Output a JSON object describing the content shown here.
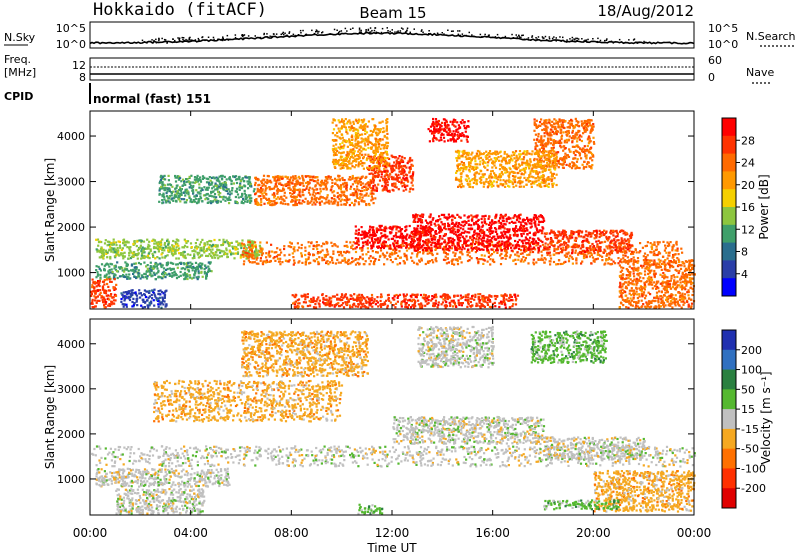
{
  "header": {
    "station": "Hokkaido (fitACF)",
    "beam": "Beam 15",
    "date": "18/Aug/2012"
  },
  "nsky_panel": {
    "label": "N.Sky",
    "left_ticks": [
      "10^5",
      "10^0"
    ],
    "right_ticks": [
      "10^5",
      "10^0"
    ],
    "right_label": "N.Search"
  },
  "freq_panel": {
    "label_line1": "Freq.",
    "label_line2": "[MHz]",
    "left_ticks": [
      "12",
      "8"
    ],
    "right_ticks": [
      "60",
      "0"
    ],
    "right_label": "Nave"
  },
  "cpid": {
    "label": "CPID",
    "value": "normal (fast) 151"
  },
  "chart_data": [
    {
      "type": "heatmap",
      "panel": "power",
      "ylabel": "Slant Range [km]",
      "ylim": [
        200,
        4550
      ],
      "yticks": [
        1000,
        2000,
        3000,
        4000
      ],
      "xlim_hours": [
        0,
        24
      ],
      "colorbar_label": "Power [dB]",
      "colorbar_ticks": [
        "28",
        "24",
        "20",
        "16",
        "12",
        "8",
        "4"
      ],
      "colors": [
        "#ff0000",
        "#ff3300",
        "#ff6a00",
        "#ff9900",
        "#f5d000",
        "#8dc63f",
        "#3f9f6a",
        "#2a6e8e",
        "#2a3ea8",
        "#0000ff"
      ],
      "bands": [
        {
          "t0": 0.2,
          "t1": 6.8,
          "r0": 1330,
          "r1": 1750,
          "c": 5
        },
        {
          "t0": 0.2,
          "t1": 4.8,
          "r0": 880,
          "r1": 1250,
          "c": 6
        },
        {
          "t0": 0.0,
          "t1": 1.0,
          "r0": 250,
          "r1": 880,
          "c": 1
        },
        {
          "t0": 1.2,
          "t1": 3.0,
          "r0": 250,
          "r1": 650,
          "c": 8
        },
        {
          "t0": 2.7,
          "t1": 6.5,
          "r0": 2550,
          "r1": 3150,
          "c": 6
        },
        {
          "t0": 6.5,
          "t1": 11.3,
          "r0": 2500,
          "r1": 3150,
          "c": 2
        },
        {
          "t0": 6.0,
          "t1": 23.5,
          "r0": 1200,
          "r1": 1700,
          "c": 2
        },
        {
          "t0": 10.5,
          "t1": 13.5,
          "r0": 1550,
          "r1": 2050,
          "c": 0
        },
        {
          "t0": 12.8,
          "t1": 18.0,
          "r0": 1500,
          "r1": 2300,
          "c": 0
        },
        {
          "t0": 18.0,
          "t1": 21.5,
          "r0": 1450,
          "r1": 1950,
          "c": 1
        },
        {
          "t0": 11.0,
          "t1": 12.8,
          "r0": 2800,
          "r1": 3600,
          "c": 1
        },
        {
          "t0": 13.4,
          "t1": 15.0,
          "r0": 3900,
          "r1": 4400,
          "c": 0
        },
        {
          "t0": 17.6,
          "t1": 20.0,
          "r0": 3300,
          "r1": 4400,
          "c": 2
        },
        {
          "t0": 9.6,
          "t1": 11.8,
          "r0": 3300,
          "r1": 4400,
          "c": 3
        },
        {
          "t0": 21.0,
          "t1": 24.0,
          "r0": 250,
          "r1": 1300,
          "c": 2
        },
        {
          "t0": 8.0,
          "t1": 17.0,
          "r0": 250,
          "r1": 550,
          "c": 1
        },
        {
          "t0": 14.5,
          "t1": 18.5,
          "r0": 2900,
          "r1": 3700,
          "c": 3
        }
      ]
    },
    {
      "type": "heatmap",
      "panel": "velocity",
      "ylabel": "Slant Range [km]",
      "xlabel": "Time UT",
      "ylim": [
        200,
        4550
      ],
      "yticks": [
        1000,
        2000,
        3000,
        4000
      ],
      "xlim_hours": [
        0,
        24
      ],
      "xticks": [
        "00:00",
        "04:00",
        "08:00",
        "12:00",
        "16:00",
        "20:00",
        "00:00"
      ],
      "colorbar_label": "Velocity [m s⁻¹]",
      "colorbar_ticks": [
        "200",
        "100",
        "50",
        "15",
        "-15",
        "-50",
        "-100",
        "-200"
      ],
      "colors": [
        "#2030b0",
        "#3070c0",
        "#2a8040",
        "#55b830",
        "#c0c0c0",
        "#f5a820",
        "#ff7000",
        "#ff3000",
        "#e00000"
      ],
      "bands": [
        {
          "t0": 0.0,
          "t1": 24.0,
          "r0": 1300,
          "r1": 1750,
          "c": 4
        },
        {
          "t0": 0.2,
          "t1": 5.5,
          "r0": 850,
          "r1": 1250,
          "c": 4
        },
        {
          "t0": 1.0,
          "t1": 4.5,
          "r0": 250,
          "r1": 800,
          "c": 4
        },
        {
          "t0": 2.5,
          "t1": 10.0,
          "r0": 2300,
          "r1": 3200,
          "c": 5
        },
        {
          "t0": 6.0,
          "t1": 11.0,
          "r0": 3300,
          "r1": 4300,
          "c": 5
        },
        {
          "t0": 12.0,
          "t1": 18.0,
          "r0": 1800,
          "r1": 2400,
          "c": 4
        },
        {
          "t0": 13.0,
          "t1": 16.0,
          "r0": 3500,
          "r1": 4400,
          "c": 4
        },
        {
          "t0": 17.5,
          "t1": 20.5,
          "r0": 3600,
          "r1": 4300,
          "c": 3
        },
        {
          "t0": 20.0,
          "t1": 24.0,
          "r0": 300,
          "r1": 1200,
          "c": 5
        },
        {
          "t0": 10.6,
          "t1": 11.6,
          "r0": 250,
          "r1": 450,
          "c": 3
        },
        {
          "t0": 18.0,
          "t1": 21.0,
          "r0": 350,
          "r1": 550,
          "c": 3
        },
        {
          "t0": 18.0,
          "t1": 22.0,
          "r0": 1450,
          "r1": 1950,
          "c": 4
        }
      ]
    }
  ]
}
